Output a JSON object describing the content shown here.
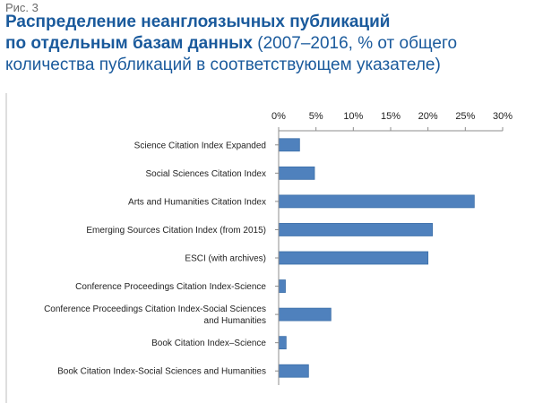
{
  "figure_label": "Рис. 3",
  "title": {
    "bold_line1": "Распределение неанглоязычных публикаций",
    "bold_line2": "по отдельным базам данных",
    "normal_line2": " (2007–2016, % от общего",
    "normal_line3": "количества публикаций в соответствующем  указателе)"
  },
  "colors": {
    "title": "#1a5a9c",
    "bar_fill": "#4f81bd",
    "bar_stroke": "#3b6ea8"
  },
  "chart_data": {
    "type": "bar",
    "orientation": "horizontal",
    "categories": [
      [
        "Science Citation Index Expanded"
      ],
      [
        "Social Sciences Citation Index"
      ],
      [
        "Arts and Humanities Citation Index"
      ],
      [
        "Emerging Sources Citation Index (from 2015)"
      ],
      [
        "ESCI (with archives)"
      ],
      [
        "Conference Proceedings Citation Index-Science"
      ],
      [
        "Conference Proceedings Citation Index-Social Sciences",
        "and Humanities"
      ],
      [
        "Book Citation Index–Science"
      ],
      [
        "Book Citation Index-Social Sciences and Humanities"
      ]
    ],
    "values": [
      2.8,
      4.8,
      26.2,
      20.6,
      20.0,
      0.9,
      7.0,
      1.0,
      4.0
    ],
    "xlim": [
      0,
      30
    ],
    "xticks": [
      "0%",
      "5%",
      "10%",
      "15%",
      "20%",
      "25%",
      "30%"
    ],
    "x_axis_position": "top",
    "grid": false,
    "legend": "none"
  }
}
